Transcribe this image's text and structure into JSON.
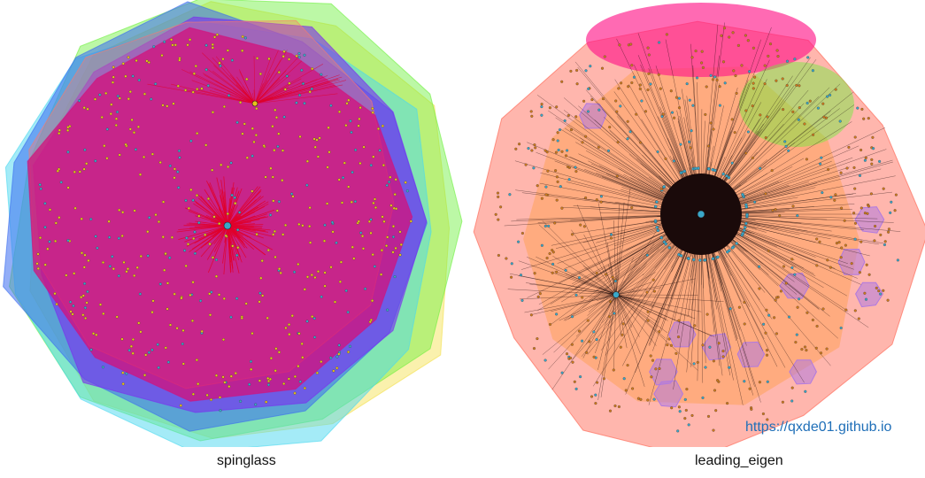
{
  "panels": {
    "left": {
      "caption": "spinglass"
    },
    "right": {
      "caption": "leading_eigen"
    }
  },
  "watermark": "https://qxde01.github.io",
  "colors": {
    "edge_left": "#e0002a",
    "edge_right": "#1a0a0a",
    "node_yellow": "#e8c21a",
    "node_blue": "#3aa7c9",
    "node_orange": "#d07a1c",
    "hull_magenta": "#d4107a",
    "hull_purple": "#7b2cf0",
    "hull_blue": "#3a6cf0",
    "hull_cyan": "#4ad8f0",
    "hull_green": "#6af03a",
    "hull_yellow": "#f4e04a",
    "hull_salmon": "#ff7a6a",
    "hull_orange": "#ff9a3a",
    "hull_pink": "#ff1a8a",
    "hull_lavender": "#b07ae0"
  }
}
